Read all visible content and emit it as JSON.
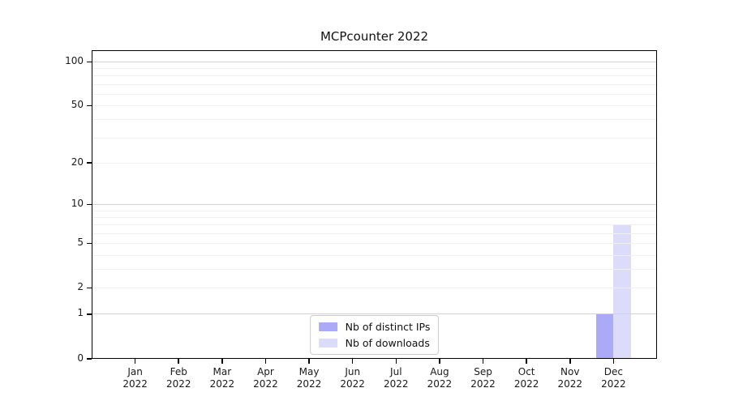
{
  "chart_data": {
    "type": "bar",
    "title": "MCPcounter 2022",
    "categories": [
      "Jan\n2022",
      "Feb\n2022",
      "Mar\n2022",
      "Apr\n2022",
      "May\n2022",
      "Jun\n2022",
      "Jul\n2022",
      "Aug\n2022",
      "Sep\n2022",
      "Oct\n2022",
      "Nov\n2022",
      "Dec\n2022"
    ],
    "series": [
      {
        "name": "Nb of distinct IPs",
        "color": "#aaaaf6",
        "values": [
          0,
          0,
          0,
          0,
          0,
          0,
          0,
          0,
          0,
          0,
          0,
          1
        ]
      },
      {
        "name": "Nb of downloads",
        "color": "#dcdcfa",
        "values": [
          0,
          0,
          0,
          0,
          0,
          0,
          0,
          0,
          0,
          0,
          0,
          7
        ]
      }
    ],
    "xlabel": "",
    "ylabel": "",
    "yscale": "log1p",
    "ylim": [
      0,
      120
    ],
    "yticks": [
      0,
      1,
      2,
      5,
      10,
      20,
      50,
      100
    ],
    "grid": {
      "minor": [
        2,
        3,
        4,
        5,
        6,
        7,
        8,
        9,
        20,
        30,
        40,
        50,
        60,
        70,
        80,
        90
      ],
      "major": [
        1,
        10,
        100
      ]
    },
    "legend_position": "lower center",
    "colors": {
      "grid_minor": "#f0f0f0",
      "grid_major": "#d2d2d2",
      "axis": "#000000",
      "text": "#1a1a1a",
      "background": "#ffffff"
    }
  }
}
